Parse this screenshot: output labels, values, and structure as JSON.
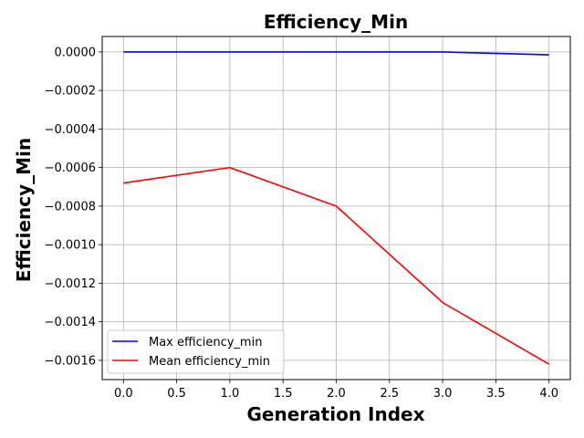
{
  "chart_data": {
    "type": "line",
    "title": "Efficiency_Min",
    "xlabel": "Generation Index",
    "ylabel": "Efficiency_Min",
    "x": [
      0,
      1,
      2,
      3,
      4
    ],
    "xlim": [
      -0.2,
      4.2
    ],
    "ylim": [
      -0.0017,
      8e-05
    ],
    "xticks": [
      0.0,
      0.5,
      1.0,
      1.5,
      2.0,
      2.5,
      3.0,
      3.5,
      4.0
    ],
    "xtick_labels": [
      "0.0",
      "0.5",
      "1.0",
      "1.5",
      "2.0",
      "2.5",
      "3.0",
      "3.5",
      "4.0"
    ],
    "yticks": [
      0.0,
      -0.0002,
      -0.0004,
      -0.0006,
      -0.0008,
      -0.001,
      -0.0012,
      -0.0014,
      -0.0016
    ],
    "ytick_labels": [
      "0.0000",
      "−0.0002",
      "−0.0004",
      "−0.0006",
      "−0.0008",
      "−0.0010",
      "−0.0012",
      "−0.0014",
      "−0.0016"
    ],
    "grid": true,
    "legend_position": "lower-left",
    "series": [
      {
        "name": "Max efficiency_min",
        "color": "#0000ff",
        "values": [
          0.0,
          0.0,
          0.0,
          0.0,
          -1.5e-05
        ]
      },
      {
        "name": "Mean efficiency_min",
        "color": "#ff0000",
        "values": [
          -0.00068,
          -0.0006,
          -0.0008,
          -0.0013,
          -0.00162
        ]
      }
    ]
  }
}
